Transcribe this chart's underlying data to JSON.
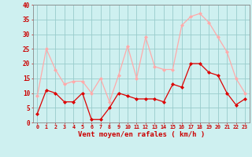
{
  "x": [
    0,
    1,
    2,
    3,
    4,
    5,
    6,
    7,
    8,
    9,
    10,
    11,
    12,
    13,
    14,
    15,
    16,
    17,
    18,
    19,
    20,
    21,
    22,
    23
  ],
  "wind_avg": [
    3,
    11,
    10,
    7,
    7,
    10,
    1,
    1,
    5,
    10,
    9,
    8,
    8,
    8,
    7,
    13,
    12,
    20,
    20,
    17,
    16,
    10,
    6,
    8
  ],
  "wind_gust": [
    9,
    25,
    18,
    13,
    14,
    14,
    10,
    15,
    7,
    16,
    26,
    15,
    29,
    19,
    18,
    18,
    33,
    36,
    37,
    34,
    29,
    24,
    15,
    10
  ],
  "xlabel": "Vent moyen/en rafales ( km/h )",
  "ylim": [
    0,
    40
  ],
  "yticks": [
    0,
    5,
    10,
    15,
    20,
    25,
    30,
    35,
    40
  ],
  "bg_color": "#cef0f0",
  "line_color_avg": "#dd0000",
  "line_color_gust": "#ffaaaa",
  "grid_color": "#99cccc",
  "tick_label_color": "#cc0000",
  "xlabel_color": "#cc0000",
  "axis_color": "#888888"
}
